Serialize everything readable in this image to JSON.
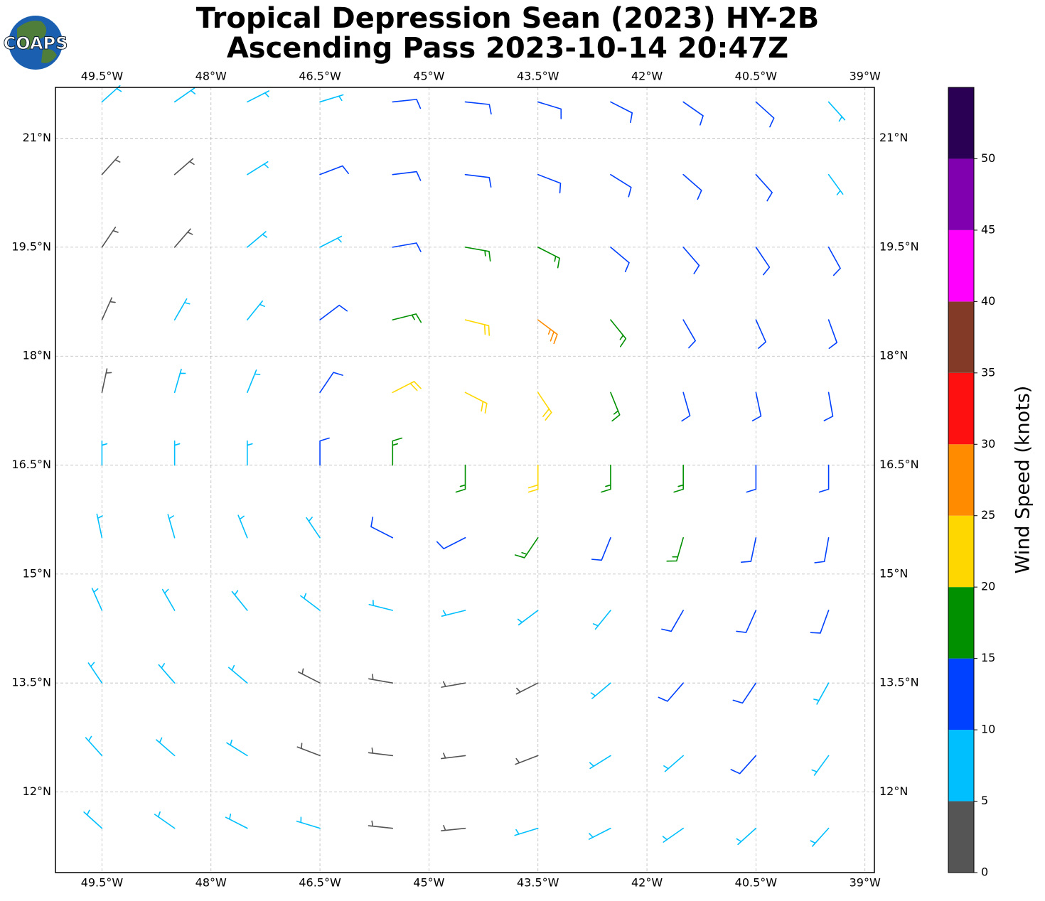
{
  "chart_data": {
    "type": "barbs",
    "title_lines": [
      "Tropical Depression Sean (2023) HY-2B",
      "Ascending Pass 2023-10-14 20:47Z"
    ],
    "logo_text": "COAPS",
    "colorbar_label": "Wind Speed (knots)",
    "xlim": [
      -50.14,
      -38.87
    ],
    "ylim": [
      10.89,
      21.7
    ],
    "xticks": [
      {
        "value": -49.5,
        "label": "49.5°W"
      },
      {
        "value": -48,
        "label": "48°W"
      },
      {
        "value": -46.5,
        "label": "46.5°W"
      },
      {
        "value": -45,
        "label": "45°W"
      },
      {
        "value": -43.5,
        "label": "43.5°W"
      },
      {
        "value": -42,
        "label": "42°W"
      },
      {
        "value": -40.5,
        "label": "40.5°W"
      },
      {
        "value": -39,
        "label": "39°W"
      }
    ],
    "yticks": [
      {
        "value": 12,
        "label": "12°N"
      },
      {
        "value": 13.5,
        "label": "13.5°N"
      },
      {
        "value": 15,
        "label": "15°N"
      },
      {
        "value": 16.5,
        "label": "16.5°N"
      },
      {
        "value": 18,
        "label": "18°N"
      },
      {
        "value": 19.5,
        "label": "19.5°N"
      },
      {
        "value": 21,
        "label": "21°N"
      }
    ],
    "grid": true,
    "colorbar_bounds": [
      0,
      5,
      10,
      15,
      20,
      25,
      30,
      35,
      40,
      45,
      50,
      55
    ],
    "colorbar_ticks": [
      0,
      5,
      10,
      15,
      20,
      25,
      30,
      35,
      40,
      45,
      50
    ],
    "colorbar_colors": [
      "#555555",
      "#00bfff",
      "#0040ff",
      "#009000",
      "#ffd700",
      "#ff8c00",
      "#ff1010",
      "#833a27",
      "#ff00ff",
      "#8000b0",
      "#2a0055"
    ],
    "barbs": [
      [
        -49.5,
        21.5,
        7,
        48
      ],
      [
        -48.5,
        21.5,
        7,
        55
      ],
      [
        -47.5,
        21.5,
        5,
        63
      ],
      [
        -46.5,
        21.5,
        7,
        73
      ],
      [
        -45.5,
        21.5,
        10,
        84
      ],
      [
        -44.5,
        21.5,
        12,
        96
      ],
      [
        -43.5,
        21.5,
        12,
        107
      ],
      [
        -42.5,
        21.5,
        12,
        117
      ],
      [
        -41.5,
        21.5,
        12,
        125
      ],
      [
        -40.5,
        21.5,
        12,
        132
      ],
      [
        -39.5,
        21.5,
        7,
        138
      ],
      [
        -49.5,
        20.5,
        3,
        42
      ],
      [
        -48.5,
        20.5,
        3,
        49
      ],
      [
        -47.5,
        20.5,
        7,
        58
      ],
      [
        -46.5,
        20.5,
        12,
        69
      ],
      [
        -45.5,
        20.5,
        12,
        83
      ],
      [
        -44.5,
        20.5,
        12,
        97
      ],
      [
        -43.5,
        20.5,
        12,
        111
      ],
      [
        -42.5,
        20.5,
        12,
        122
      ],
      [
        -41.5,
        20.5,
        12,
        131
      ],
      [
        -40.5,
        20.5,
        12,
        138
      ],
      [
        -39.5,
        20.5,
        7,
        144
      ],
      [
        -49.5,
        19.5,
        3,
        34
      ],
      [
        -48.5,
        19.5,
        3,
        41
      ],
      [
        -47.5,
        19.5,
        7,
        50
      ],
      [
        -46.5,
        19.5,
        7,
        63
      ],
      [
        -45.5,
        19.5,
        12,
        80
      ],
      [
        -44.5,
        19.5,
        17,
        100
      ],
      [
        -43.5,
        19.5,
        17,
        117
      ],
      [
        -42.5,
        19.5,
        12,
        130
      ],
      [
        -41.5,
        19.5,
        12,
        139
      ],
      [
        -40.5,
        19.5,
        12,
        146
      ],
      [
        -39.5,
        19.5,
        12,
        151
      ],
      [
        -49.5,
        18.5,
        3,
        24
      ],
      [
        -48.5,
        18.5,
        7,
        30
      ],
      [
        -47.5,
        18.5,
        7,
        39
      ],
      [
        -46.5,
        18.5,
        12,
        53
      ],
      [
        -45.5,
        18.5,
        17,
        76
      ],
      [
        -44.5,
        18.5,
        22,
        104
      ],
      [
        -43.5,
        18.5,
        27,
        127
      ],
      [
        -42.5,
        18.5,
        17,
        141
      ],
      [
        -41.5,
        18.5,
        12,
        150
      ],
      [
        -40.5,
        18.5,
        12,
        156
      ],
      [
        -39.5,
        18.5,
        12,
        160
      ],
      [
        -49.5,
        17.5,
        3,
        12
      ],
      [
        -48.5,
        17.5,
        7,
        16
      ],
      [
        -47.5,
        17.5,
        7,
        22
      ],
      [
        -46.5,
        17.5,
        12,
        34
      ],
      [
        -45.5,
        17.5,
        22,
        63
      ],
      [
        -44.5,
        17.5,
        22,
        117
      ],
      [
        -43.5,
        17.5,
        22,
        146
      ],
      [
        -42.5,
        17.5,
        17,
        158
      ],
      [
        -41.5,
        17.5,
        12,
        164
      ],
      [
        -40.5,
        17.5,
        12,
        168
      ],
      [
        -39.5,
        17.5,
        12,
        170
      ],
      [
        -49.5,
        16.5,
        7,
        0
      ],
      [
        -48.5,
        16.5,
        7,
        0
      ],
      [
        -47.5,
        16.5,
        7,
        0
      ],
      [
        -46.5,
        16.5,
        12,
        0
      ],
      [
        -45.5,
        16.5,
        17,
        0
      ],
      [
        -44.5,
        16.5,
        17,
        180
      ],
      [
        -43.5,
        16.5,
        22,
        180
      ],
      [
        -42.5,
        16.5,
        17,
        180
      ],
      [
        -41.5,
        16.5,
        17,
        180
      ],
      [
        -40.5,
        16.5,
        12,
        180
      ],
      [
        -39.5,
        16.5,
        12,
        180
      ],
      [
        -49.5,
        15.5,
        7,
        348
      ],
      [
        -48.5,
        15.5,
        7,
        344
      ],
      [
        -47.5,
        15.5,
        7,
        338
      ],
      [
        -46.5,
        15.5,
        7,
        326
      ],
      [
        -45.5,
        15.5,
        12,
        297
      ],
      [
        -44.5,
        15.5,
        12,
        243
      ],
      [
        -43.5,
        15.5,
        17,
        214
      ],
      [
        -42.5,
        15.5,
        12,
        202
      ],
      [
        -41.5,
        15.5,
        17,
        196
      ],
      [
        -40.5,
        15.5,
        12,
        192
      ],
      [
        -39.5,
        15.5,
        12,
        190
      ],
      [
        -49.5,
        14.5,
        7,
        336
      ],
      [
        -48.5,
        14.5,
        7,
        330
      ],
      [
        -47.5,
        14.5,
        7,
        321
      ],
      [
        -46.5,
        14.5,
        7,
        307
      ],
      [
        -45.5,
        14.5,
        7,
        284
      ],
      [
        -44.5,
        14.5,
        7,
        256
      ],
      [
        -43.5,
        14.5,
        7,
        233
      ],
      [
        -42.5,
        14.5,
        7,
        219
      ],
      [
        -41.5,
        14.5,
        12,
        210
      ],
      [
        -40.5,
        14.5,
        12,
        204
      ],
      [
        -39.5,
        14.5,
        12,
        200
      ],
      [
        -49.5,
        13.5,
        7,
        326
      ],
      [
        -48.5,
        13.5,
        7,
        319
      ],
      [
        -47.5,
        13.5,
        7,
        310
      ],
      [
        -46.5,
        13.5,
        3,
        297
      ],
      [
        -45.5,
        13.5,
        3,
        280
      ],
      [
        -44.5,
        13.5,
        3,
        260
      ],
      [
        -43.5,
        13.5,
        3,
        243
      ],
      [
        -42.5,
        13.5,
        7,
        230
      ],
      [
        -41.5,
        13.5,
        12,
        221
      ],
      [
        -40.5,
        13.5,
        12,
        214
      ],
      [
        -39.5,
        13.5,
        7,
        209
      ],
      [
        -49.5,
        12.5,
        7,
        318
      ],
      [
        -48.5,
        12.5,
        7,
        311
      ],
      [
        -47.5,
        12.5,
        7,
        302
      ],
      [
        -46.5,
        12.5,
        3,
        291
      ],
      [
        -45.5,
        12.5,
        3,
        277
      ],
      [
        -44.5,
        12.5,
        3,
        263
      ],
      [
        -43.5,
        12.5,
        3,
        249
      ],
      [
        -42.5,
        12.5,
        7,
        238
      ],
      [
        -41.5,
        12.5,
        7,
        229
      ],
      [
        -40.5,
        12.5,
        12,
        222
      ],
      [
        -39.5,
        12.5,
        7,
        216
      ],
      [
        -49.5,
        11.5,
        7,
        312
      ],
      [
        -48.5,
        11.5,
        7,
        305
      ],
      [
        -47.5,
        11.5,
        7,
        297
      ],
      [
        -46.5,
        11.5,
        7,
        287
      ],
      [
        -45.5,
        11.5,
        3,
        276
      ],
      [
        -44.5,
        11.5,
        3,
        264
      ],
      [
        -43.5,
        11.5,
        7,
        253
      ],
      [
        -42.5,
        11.5,
        7,
        243
      ],
      [
        -41.5,
        11.5,
        7,
        235
      ],
      [
        -40.5,
        11.5,
        7,
        228
      ],
      [
        -39.5,
        11.5,
        7,
        222
      ]
    ]
  }
}
